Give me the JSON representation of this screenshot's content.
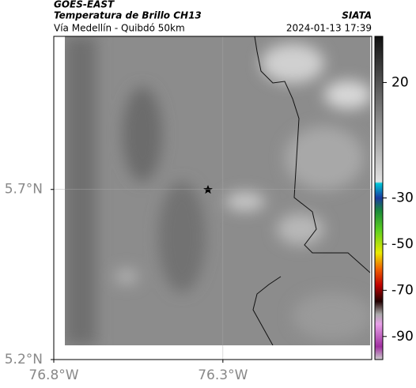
{
  "header": {
    "satellite": "GOES-EAST",
    "title": "Temperatura de Brillo CH13",
    "source": "SIATA",
    "subtitle": "Vía Medellín - Quibdó 50km",
    "timestamp": "2024-01-13 17:39"
  },
  "map": {
    "xlim": [
      -76.8,
      -75.86
    ],
    "ylim": [
      5.2,
      6.15
    ],
    "xticks": [
      {
        "value": -76.8,
        "label": "76.8°W"
      },
      {
        "value": -76.3,
        "label": "76.3°W"
      }
    ],
    "yticks": [
      {
        "value": 5.7,
        "label": "5.7°N"
      },
      {
        "value": 5.2,
        "label": "5.2°N"
      }
    ],
    "grid": true
  },
  "colorbar": {
    "lim": [
      -100,
      40
    ],
    "ticks": [
      20,
      -30,
      -50,
      -70,
      -90
    ]
  }
}
